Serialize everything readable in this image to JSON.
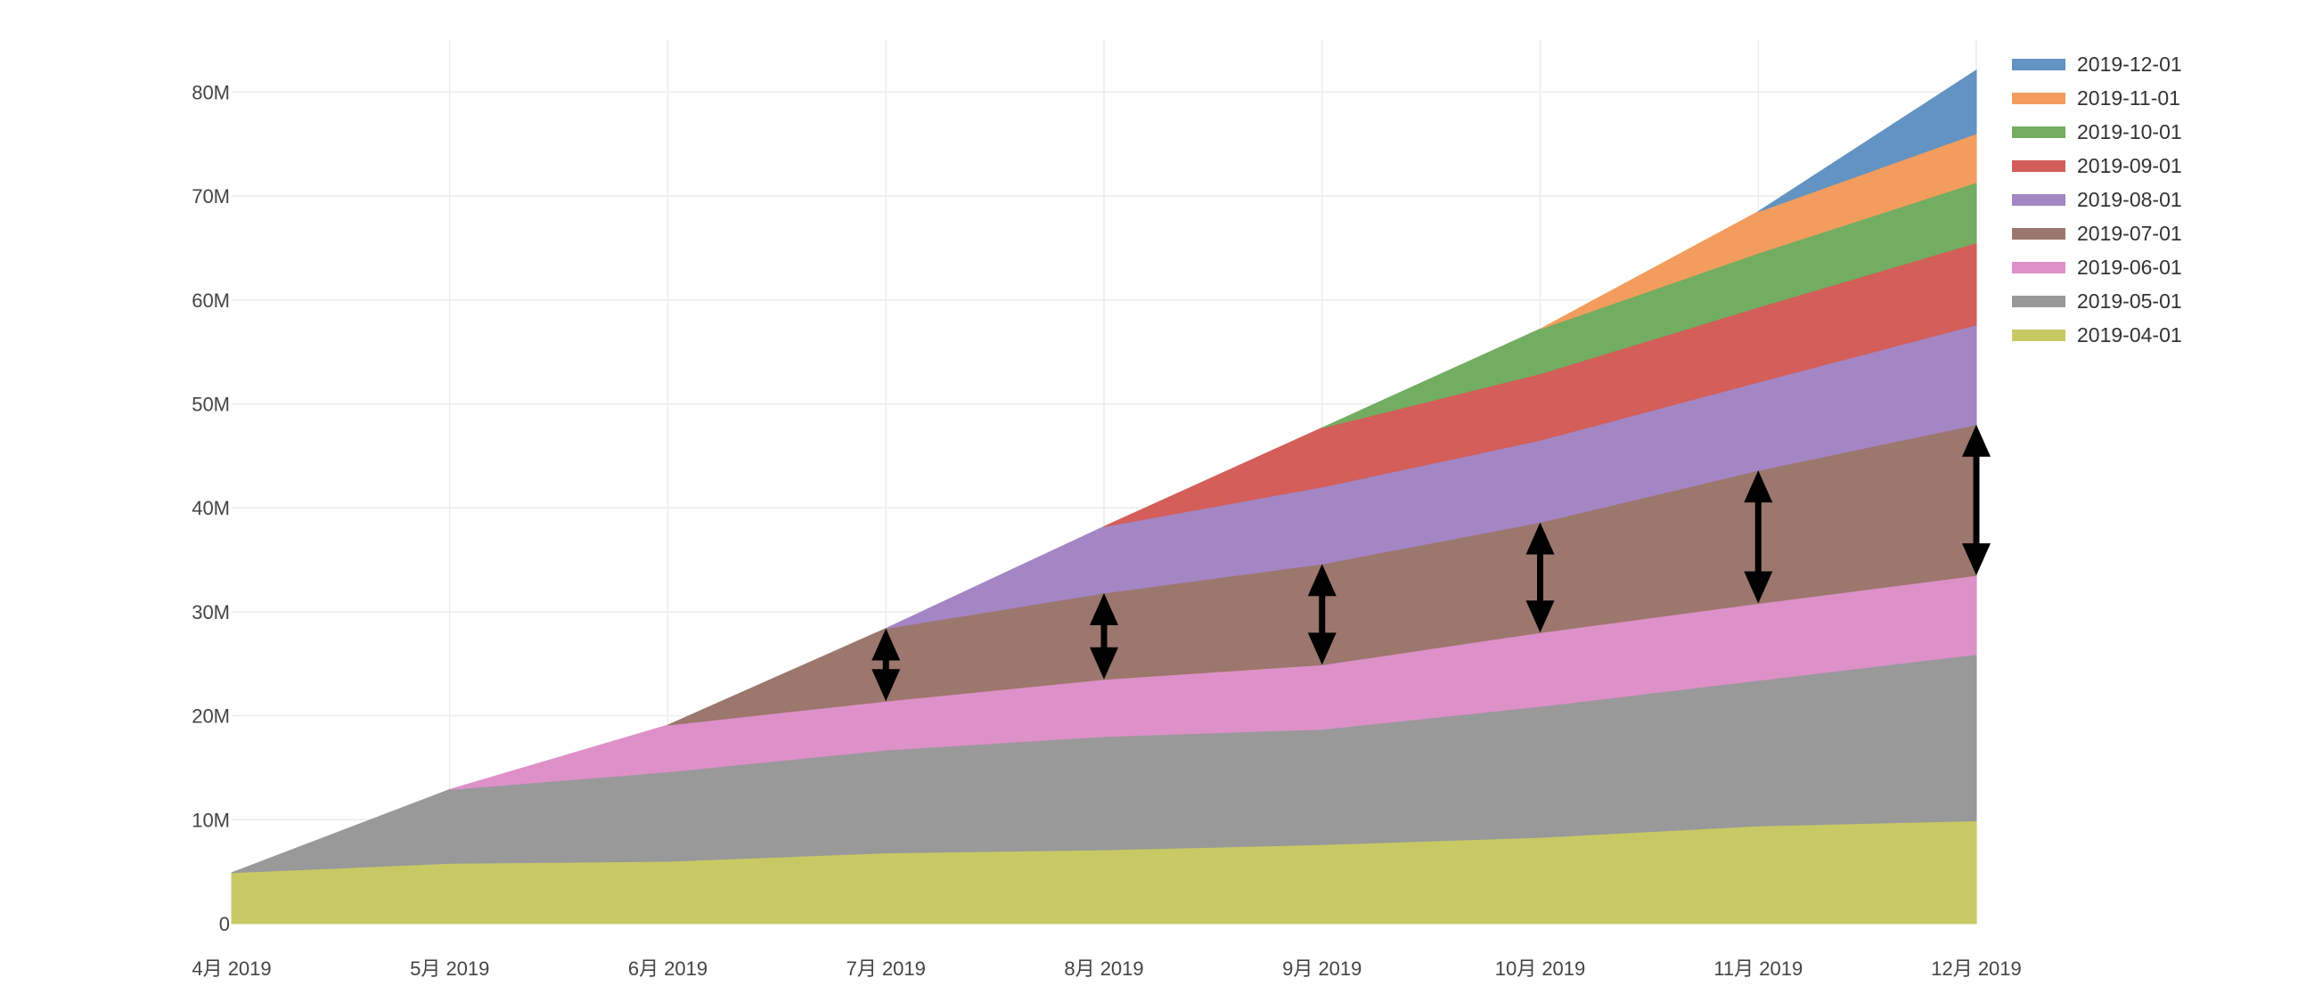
{
  "chart_data": {
    "type": "area",
    "stacked": true,
    "title": "",
    "xlabel": "",
    "ylabel": "",
    "x": [
      "4月 2019",
      "5月 2019",
      "6月 2019",
      "7月 2019",
      "8月 2019",
      "9月 2019",
      "10月 2019",
      "11月 2019",
      "12月 2019"
    ],
    "ylim": [
      0,
      85000000
    ],
    "y_ticks": [
      0,
      10000000,
      20000000,
      30000000,
      40000000,
      50000000,
      60000000,
      70000000,
      80000000
    ],
    "y_tick_labels": [
      "0",
      "10M",
      "20M",
      "30M",
      "40M",
      "50M",
      "60M",
      "70M",
      "80M"
    ],
    "grid": true,
    "legend_position": "top-right",
    "series": [
      {
        "name": "2019-04-01",
        "color": "#c8c965",
        "values": [
          4900000,
          5800000,
          6000000,
          6800000,
          7100000,
          7600000,
          8300000,
          9400000,
          9900000
        ]
      },
      {
        "name": "2019-05-01",
        "color": "#999999",
        "values": [
          null,
          7100000,
          8600000,
          9900000,
          10900000,
          11100000,
          12600000,
          14000000,
          16000000
        ]
      },
      {
        "name": "2019-06-01",
        "color": "#de90c8",
        "values": [
          null,
          null,
          4500000,
          4700000,
          5500000,
          6200000,
          7100000,
          7400000,
          7600000
        ]
      },
      {
        "name": "2019-07-01",
        "color": "#9c776d",
        "values": [
          null,
          null,
          null,
          7000000,
          8300000,
          9700000,
          10600000,
          12800000,
          14500000
        ]
      },
      {
        "name": "2019-08-01",
        "color": "#a386c3",
        "values": [
          null,
          null,
          null,
          null,
          6400000,
          7400000,
          7900000,
          8500000,
          9600000
        ]
      },
      {
        "name": "2019-09-01",
        "color": "#d35e5a",
        "values": [
          null,
          null,
          null,
          null,
          null,
          5700000,
          6400000,
          7200000,
          7900000
        ]
      },
      {
        "name": "2019-10-01",
        "color": "#72ad62",
        "values": [
          null,
          null,
          null,
          null,
          null,
          null,
          4300000,
          5200000,
          5800000
        ]
      },
      {
        "name": "2019-11-01",
        "color": "#f29d5d",
        "values": [
          null,
          null,
          null,
          null,
          null,
          null,
          null,
          4000000,
          4700000
        ]
      },
      {
        "name": "2019-12-01",
        "color": "#6393c2",
        "values": [
          null,
          null,
          null,
          null,
          null,
          null,
          null,
          null,
          6100000
        ]
      }
    ],
    "legend_order": [
      "2019-12-01",
      "2019-11-01",
      "2019-10-01",
      "2019-09-01",
      "2019-08-01",
      "2019-07-01",
      "2019-06-01",
      "2019-05-01",
      "2019-04-01"
    ],
    "annotations": [
      {
        "kind": "double-arrow",
        "series": "2019-07-01",
        "x_index": 3
      },
      {
        "kind": "double-arrow",
        "series": "2019-07-01",
        "x_index": 4
      },
      {
        "kind": "double-arrow",
        "series": "2019-07-01",
        "x_index": 5
      },
      {
        "kind": "double-arrow",
        "series": "2019-07-01",
        "x_index": 6
      },
      {
        "kind": "double-arrow",
        "series": "2019-07-01",
        "x_index": 7
      },
      {
        "kind": "double-arrow",
        "series": "2019-07-01",
        "x_index": 8
      }
    ]
  }
}
